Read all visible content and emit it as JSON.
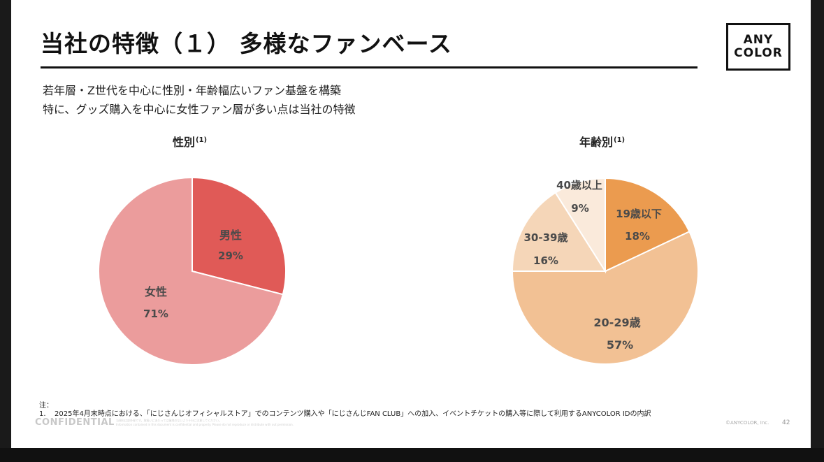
{
  "slide": {
    "title": "当社の特徴（１） 多様なファンベース",
    "subtitle_lines": [
      "若年層・Z世代を中心に性別・年齢幅広いファン基盤を構築",
      "特に、グッズ購入を中心に女性ファン層が多い点は当社の特徴"
    ],
    "logo_line1": "ANY",
    "logo_line2": "COLOR",
    "note_head": "注：",
    "note_num": "1.",
    "note_text": "2025年4月末時点における、「にじさんじオフィシャルストア」でのコンテンツ購入や「にじさんじFAN CLUB」への加入、イベントチケットの購入等に際して利用するANYCOLOR IDの内訳",
    "confidential": "CONFIDENTIAL",
    "confidential_small1": "当資料は部外秘です。取扱いにあたっては漏洩のないよう十分に注意してください。",
    "confidential_small2": "Information contained in this document is confidential and property. Please do not reproduce or distribute with out permission.",
    "copyright": "©ANYCOLOR, Inc.",
    "page_number": "42"
  },
  "colors": {
    "male": "#e05a57",
    "female": "#eb9c9c",
    "age_19": "#eb9b4f",
    "age_20_29": "#f2c194",
    "age_30_39": "#f5d6b8",
    "age_40": "#faeadb"
  },
  "chart_data": [
    {
      "type": "pie",
      "title": "性別",
      "title_sup": "(1)",
      "slices": [
        {
          "label": "男性",
          "value": 29,
          "value_label": "29%",
          "color": "#e05a57"
        },
        {
          "label": "女性",
          "value": 71,
          "value_label": "71%",
          "color": "#eb9c9c"
        }
      ]
    },
    {
      "type": "pie",
      "title": "年齢別",
      "title_sup": "(1)",
      "slices": [
        {
          "label": "19歳以下",
          "value": 18,
          "value_label": "18%",
          "color": "#eb9b4f"
        },
        {
          "label": "20-29歳",
          "value": 57,
          "value_label": "57%",
          "color": "#f2c194"
        },
        {
          "label": "30-39歳",
          "value": 16,
          "value_label": "16%",
          "color": "#f5d6b8"
        },
        {
          "label": "40歳以上",
          "value": 9,
          "value_label": "9%",
          "color": "#faeadb"
        }
      ]
    }
  ]
}
